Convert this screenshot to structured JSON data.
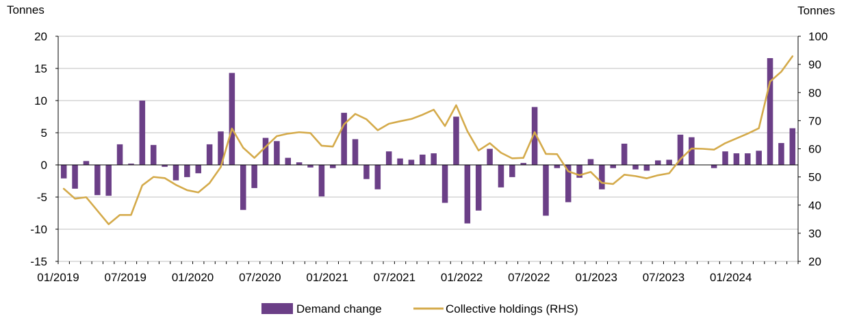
{
  "chart_data": {
    "type": "bar+line",
    "ylabel_left": "Tonnes",
    "ylabel_right": "Tonnes",
    "ylim_left": [
      -15,
      20
    ],
    "ylim_right": [
      20,
      100
    ],
    "yticks_left": [
      "20",
      "15",
      "10",
      "5",
      "0",
      "-5",
      "-10",
      "-15"
    ],
    "yticks_right": [
      "100",
      "90",
      "80",
      "70",
      "60",
      "50",
      "40",
      "30",
      "20"
    ],
    "x_tick_labels": [
      "01/2019",
      "07/2019",
      "01/2020",
      "07/2020",
      "01/2021",
      "07/2021",
      "01/2022",
      "07/2022",
      "01/2023",
      "07/2023",
      "01/2024"
    ],
    "x_tick_indices": [
      0,
      6,
      12,
      18,
      24,
      30,
      36,
      42,
      48,
      54,
      60
    ],
    "grid": true,
    "legend_position": "bottom",
    "series": [
      {
        "name": "Demand change",
        "type": "bar",
        "axis": "left",
        "color": "#6b3f87",
        "values": [
          -2.1,
          -3.7,
          0.6,
          -4.7,
          -4.8,
          3.2,
          0.2,
          10.0,
          3.1,
          -0.3,
          -2.4,
          -1.9,
          -1.3,
          3.2,
          5.2,
          14.3,
          -7.0,
          -3.6,
          4.2,
          3.7,
          1.1,
          0.4,
          -0.4,
          -4.9,
          -0.5,
          8.1,
          4.0,
          -2.2,
          -3.8,
          2.1,
          1.0,
          0.8,
          1.6,
          1.8,
          -5.9,
          7.5,
          -9.1,
          -7.1,
          2.5,
          -3.5,
          -1.9,
          0.3,
          9.0,
          -7.9,
          -0.5,
          -5.8,
          -2.0,
          0.9,
          -3.8,
          -0.5,
          3.3,
          -0.7,
          -0.9,
          0.7,
          0.8,
          4.7,
          4.3,
          0.0,
          -0.5,
          2.1,
          1.8,
          1.8,
          2.2,
          16.6,
          3.4,
          5.7
        ]
      },
      {
        "name": "Collective holdings (RHS)",
        "type": "line",
        "axis": "right",
        "color": "#d4aa4a",
        "values": [
          45.8,
          42.3,
          42.8,
          38.0,
          33.2,
          36.5,
          36.5,
          47.0,
          50.0,
          49.6,
          47.2,
          45.3,
          44.5,
          47.8,
          53.5,
          67.2,
          60.4,
          56.8,
          60.7,
          64.5,
          65.4,
          65.9,
          65.6,
          61.1,
          60.8,
          68.7,
          72.4,
          70.5,
          66.6,
          68.9,
          69.8,
          70.6,
          72.1,
          73.9,
          68.1,
          75.5,
          66.3,
          59.4,
          62.0,
          58.6,
          56.6,
          56.8,
          65.9,
          58.2,
          58.1,
          52.0,
          50.6,
          51.8,
          47.9,
          47.5,
          50.8,
          50.3,
          49.5,
          50.6,
          51.3,
          56.3,
          60.1,
          60.0,
          59.7,
          62.0,
          63.7,
          65.4,
          67.3,
          83.9,
          87.4,
          92.9
        ]
      }
    ]
  }
}
